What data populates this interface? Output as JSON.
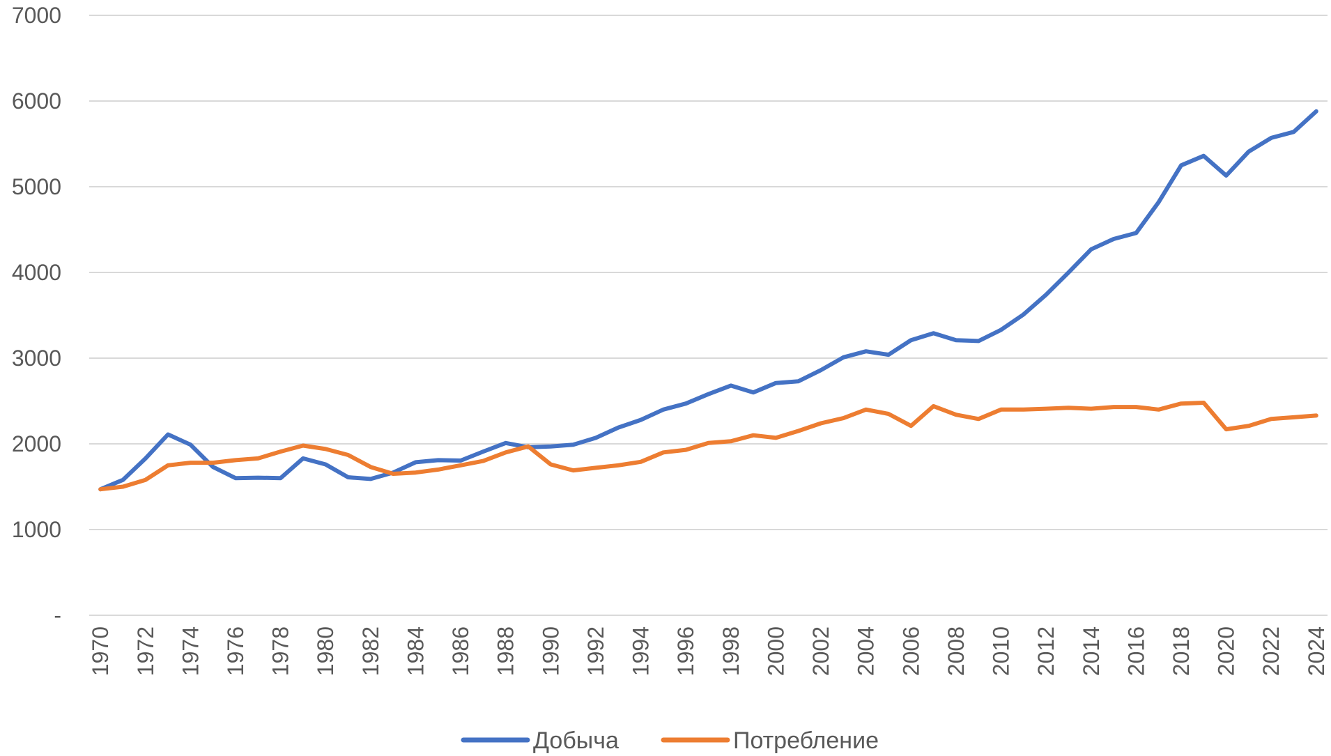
{
  "chart_data": {
    "type": "line",
    "title": "",
    "xlabel": "",
    "ylabel": "",
    "ylim": [
      0,
      7000
    ],
    "ytick_values": [
      0,
      1000,
      2000,
      3000,
      4000,
      5000,
      6000,
      7000
    ],
    "ytick_labels": [
      "-",
      "1000",
      "2000",
      "3000",
      "4000",
      "5000",
      "6000",
      "7000"
    ],
    "x": [
      1970,
      1971,
      1972,
      1973,
      1974,
      1975,
      1976,
      1977,
      1978,
      1979,
      1980,
      1981,
      1982,
      1983,
      1984,
      1985,
      1986,
      1987,
      1988,
      1989,
      1990,
      1991,
      1992,
      1993,
      1994,
      1995,
      1996,
      1997,
      1998,
      1999,
      2000,
      2001,
      2002,
      2003,
      2004,
      2005,
      2006,
      2007,
      2008,
      2009,
      2010,
      2011,
      2012,
      2013,
      2014,
      2015,
      2016,
      2017,
      2018,
      2019,
      2020,
      2021,
      2022,
      2023,
      2024
    ],
    "xtick_labels": [
      "1970",
      "1972",
      "1974",
      "1976",
      "1978",
      "1980",
      "1982",
      "1984",
      "1986",
      "1988",
      "1990",
      "1992",
      "1994",
      "1996",
      "1998",
      "2000",
      "2002",
      "2004",
      "2006",
      "2008",
      "2010",
      "2012",
      "2014",
      "2016",
      "2018",
      "2020",
      "2022",
      "2024"
    ],
    "grid": "horizontal",
    "legend_position": "bottom",
    "series": [
      {
        "name": "Добыча",
        "color": "#4472C4",
        "values": [
          1470,
          1580,
          1830,
          2110,
          1990,
          1730,
          1600,
          1605,
          1600,
          1830,
          1760,
          1610,
          1590,
          1665,
          1785,
          1810,
          1805,
          1910,
          2010,
          1960,
          1970,
          1990,
          2070,
          2190,
          2280,
          2400,
          2470,
          2580,
          2680,
          2600,
          2710,
          2730,
          2860,
          3010,
          3080,
          3040,
          3210,
          3290,
          3210,
          3200,
          3330,
          3510,
          3740,
          4000,
          4270,
          4390,
          4460,
          4820,
          5250,
          5360,
          5130,
          5410,
          5570,
          5640,
          5880
        ]
      },
      {
        "name": "Потребление",
        "color": "#ED7D31",
        "values": [
          1470,
          1500,
          1580,
          1750,
          1780,
          1780,
          1810,
          1830,
          1910,
          1980,
          1940,
          1870,
          1730,
          1650,
          1665,
          1700,
          1750,
          1800,
          1900,
          1970,
          1760,
          1690,
          1720,
          1750,
          1790,
          1900,
          1930,
          2010,
          2030,
          2100,
          2070,
          2150,
          2240,
          2300,
          2400,
          2350,
          2210,
          2440,
          2340,
          2290,
          2400,
          2400,
          2410,
          2420,
          2410,
          2430,
          2430,
          2400,
          2470,
          2480,
          2170,
          2210,
          2290,
          2310,
          2330
        ]
      }
    ]
  }
}
